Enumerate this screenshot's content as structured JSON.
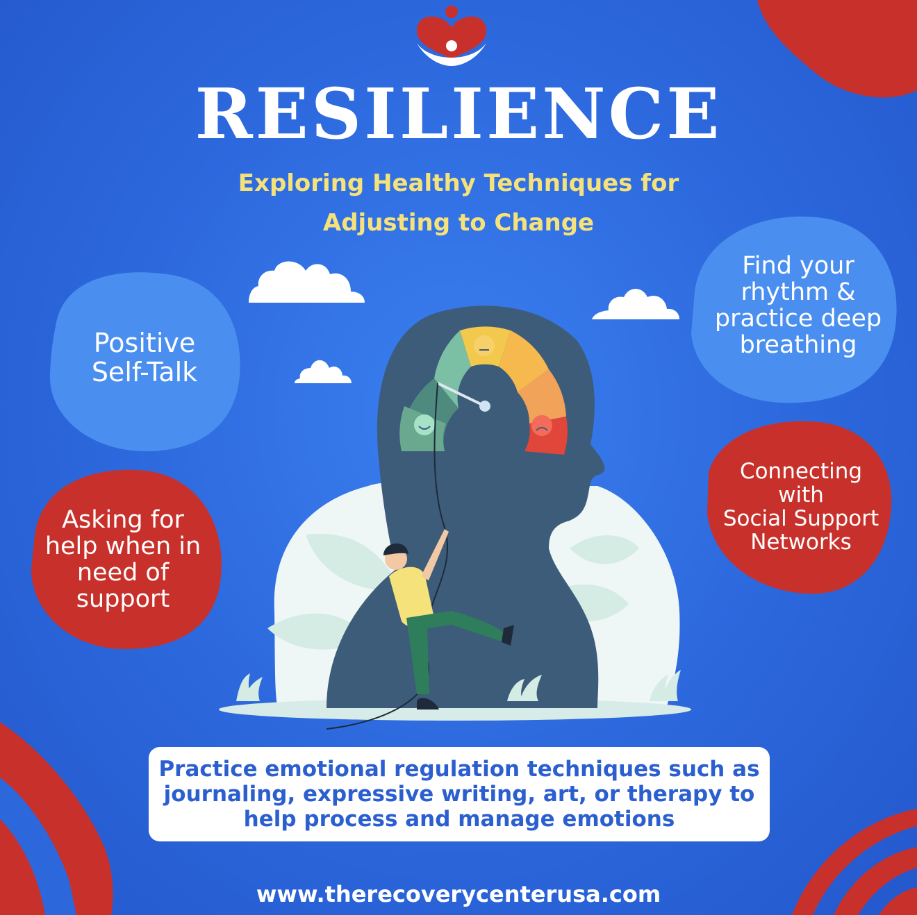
{
  "title": "RESILIENCE",
  "subtitle": {
    "line1": "Exploring Healthy Techniques for",
    "line2": "Adjusting to Change"
  },
  "bubbles": {
    "left_top": {
      "line1": "Positive",
      "line2": "Self-Talk"
    },
    "left_bottom": {
      "line1": "Asking for",
      "line2": "help when in",
      "line3": "need of",
      "line4": "support"
    },
    "right_top": {
      "line1": "Find your",
      "line2": "rhythm &",
      "line3": "practice deep",
      "line4": "breathing"
    },
    "right_bottom": {
      "line1": "Connecting",
      "line2": "with",
      "line3": "Social Support",
      "line4": "Networks"
    }
  },
  "bottom_box": {
    "line1": "Practice emotional regulation techniques such as",
    "line2": "journaling, expressive writing, art, or therapy to",
    "line3": "help process and manage emotions"
  },
  "website": "www.therecoverycenterusa.com",
  "icons": {
    "logo": "heart-person-logo-icon",
    "cloud": "cloud-icon",
    "gauge": "mood-gauge-icon",
    "happy": "happy-face-icon",
    "neutral": "neutral-face-icon",
    "sad": "sad-face-icon",
    "climber": "climbing-person-icon",
    "leaf": "leaf-icon",
    "grass": "grass-icon"
  },
  "colors": {
    "background": "#2c67dc",
    "accent_red": "#c8312b",
    "light_blue_bubble": "#4a8ff0",
    "subtitle_yellow": "#f6e27a",
    "head_silhouette": "#3d5c7a"
  }
}
